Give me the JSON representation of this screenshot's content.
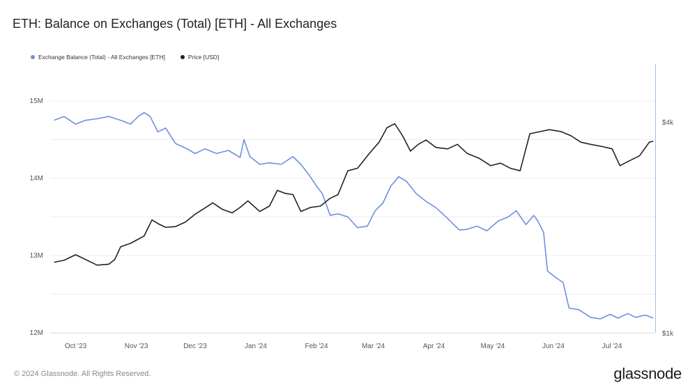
{
  "title": "ETH: Balance on Exchanges (Total) [ETH] - All Exchanges",
  "footer": "© 2024 Glassnode. All Rights Reserved.",
  "brand": "glassnode",
  "colors": {
    "balance": "#6f8ee0",
    "price": "#222222",
    "grid": "#ececec",
    "axis_text": "#555555"
  },
  "chart_data": {
    "type": "line",
    "x_ticks": [
      "Oct '23",
      "Nov '23",
      "Dec '23",
      "Jan '24",
      "Feb '24",
      "Mar '24",
      "Apr '24",
      "May '24",
      "Jun '24",
      "Jul '24"
    ],
    "left_axis": {
      "ticks": [
        12000000,
        13000000,
        14000000,
        15000000
      ],
      "tick_labels": [
        "12M",
        "13M",
        "14M",
        "15M"
      ],
      "ylim": [
        12000000,
        15000000
      ]
    },
    "right_axis": {
      "ticks": [
        1000,
        4000
      ],
      "tick_labels": [
        "$1k",
        "$4k"
      ],
      "ylim": [
        1000,
        4000
      ],
      "scale": "log"
    },
    "legend_position": "top-left",
    "grid": true,
    "series": [
      {
        "name": "Exchange Balance (Total) - All Exchanges [ETH]",
        "axis": "left",
        "x": [
          "2023-09-20",
          "2023-09-25",
          "2023-10-01",
          "2023-10-06",
          "2023-10-12",
          "2023-10-18",
          "2023-10-24",
          "2023-10-29",
          "2023-11-02",
          "2023-11-05",
          "2023-11-08",
          "2023-11-12",
          "2023-11-16",
          "2023-11-21",
          "2023-11-27",
          "2023-12-01",
          "2023-12-06",
          "2023-12-12",
          "2023-12-18",
          "2023-12-24",
          "2023-12-26",
          "2023-12-29",
          "2024-01-03",
          "2024-01-08",
          "2024-01-14",
          "2024-01-20",
          "2024-01-24",
          "2024-01-28",
          "2024-02-01",
          "2024-02-04",
          "2024-02-08",
          "2024-02-12",
          "2024-02-17",
          "2024-02-22",
          "2024-02-27",
          "2024-03-02",
          "2024-03-06",
          "2024-03-10",
          "2024-03-14",
          "2024-03-18",
          "2024-03-23",
          "2024-03-28",
          "2024-04-02",
          "2024-04-08",
          "2024-04-14",
          "2024-04-18",
          "2024-04-23",
          "2024-04-28",
          "2024-05-04",
          "2024-05-09",
          "2024-05-13",
          "2024-05-18",
          "2024-05-22",
          "2024-05-24",
          "2024-05-27",
          "2024-05-29",
          "2024-06-02",
          "2024-06-06",
          "2024-06-09",
          "2024-06-14",
          "2024-06-20",
          "2024-06-25",
          "2024-06-30",
          "2024-07-04",
          "2024-07-09",
          "2024-07-13",
          "2024-07-18",
          "2024-07-22"
        ],
        "values": [
          14750000,
          14800000,
          14700000,
          14750000,
          14770000,
          14800000,
          14750000,
          14700000,
          14800000,
          14850000,
          14800000,
          14600000,
          14650000,
          14450000,
          14380000,
          14320000,
          14380000,
          14320000,
          14360000,
          14270000,
          14500000,
          14280000,
          14180000,
          14200000,
          14180000,
          14280000,
          14180000,
          14050000,
          13900000,
          13800000,
          13520000,
          13540000,
          13500000,
          13360000,
          13380000,
          13580000,
          13680000,
          13900000,
          14020000,
          13960000,
          13800000,
          13700000,
          13620000,
          13480000,
          13330000,
          13340000,
          13380000,
          13320000,
          13450000,
          13500000,
          13580000,
          13400000,
          13520000,
          13450000,
          13300000,
          12800000,
          12720000,
          12650000,
          12320000,
          12300000,
          12200000,
          12180000,
          12240000,
          12190000,
          12250000,
          12200000,
          12230000,
          12190000
        ]
      },
      {
        "name": "Price [USD]",
        "axis": "right",
        "x": [
          "2023-09-20",
          "2023-09-25",
          "2023-10-01",
          "2023-10-06",
          "2023-10-12",
          "2023-10-18",
          "2023-10-21",
          "2023-10-24",
          "2023-10-29",
          "2023-11-02",
          "2023-11-05",
          "2023-11-09",
          "2023-11-12",
          "2023-11-16",
          "2023-11-21",
          "2023-11-26",
          "2023-12-01",
          "2023-12-06",
          "2023-12-10",
          "2023-12-15",
          "2023-12-20",
          "2023-12-24",
          "2023-12-28",
          "2024-01-03",
          "2024-01-08",
          "2024-01-12",
          "2024-01-16",
          "2024-01-20",
          "2024-01-24",
          "2024-01-29",
          "2024-02-03",
          "2024-02-08",
          "2024-02-12",
          "2024-02-17",
          "2024-02-22",
          "2024-02-28",
          "2024-03-04",
          "2024-03-08",
          "2024-03-12",
          "2024-03-16",
          "2024-03-20",
          "2024-03-24",
          "2024-03-28",
          "2024-04-02",
          "2024-04-08",
          "2024-04-13",
          "2024-04-18",
          "2024-04-24",
          "2024-04-30",
          "2024-05-05",
          "2024-05-10",
          "2024-05-15",
          "2024-05-20",
          "2024-05-25",
          "2024-05-30",
          "2024-06-05",
          "2024-06-10",
          "2024-06-15",
          "2024-06-20",
          "2024-06-26",
          "2024-07-01",
          "2024-07-05",
          "2024-07-10",
          "2024-07-15",
          "2024-07-20",
          "2024-07-22"
        ],
        "values": [
          1590,
          1610,
          1670,
          1620,
          1560,
          1570,
          1620,
          1760,
          1800,
          1850,
          1890,
          2100,
          2050,
          2000,
          2010,
          2070,
          2180,
          2270,
          2350,
          2250,
          2200,
          2280,
          2380,
          2220,
          2300,
          2550,
          2500,
          2480,
          2220,
          2280,
          2300,
          2420,
          2480,
          2900,
          2950,
          3250,
          3500,
          3850,
          3950,
          3650,
          3300,
          3450,
          3550,
          3380,
          3350,
          3450,
          3250,
          3150,
          3000,
          3050,
          2950,
          2900,
          3700,
          3750,
          3800,
          3750,
          3650,
          3500,
          3450,
          3400,
          3350,
          3000,
          3100,
          3200,
          3500,
          3520
        ]
      }
    ]
  }
}
